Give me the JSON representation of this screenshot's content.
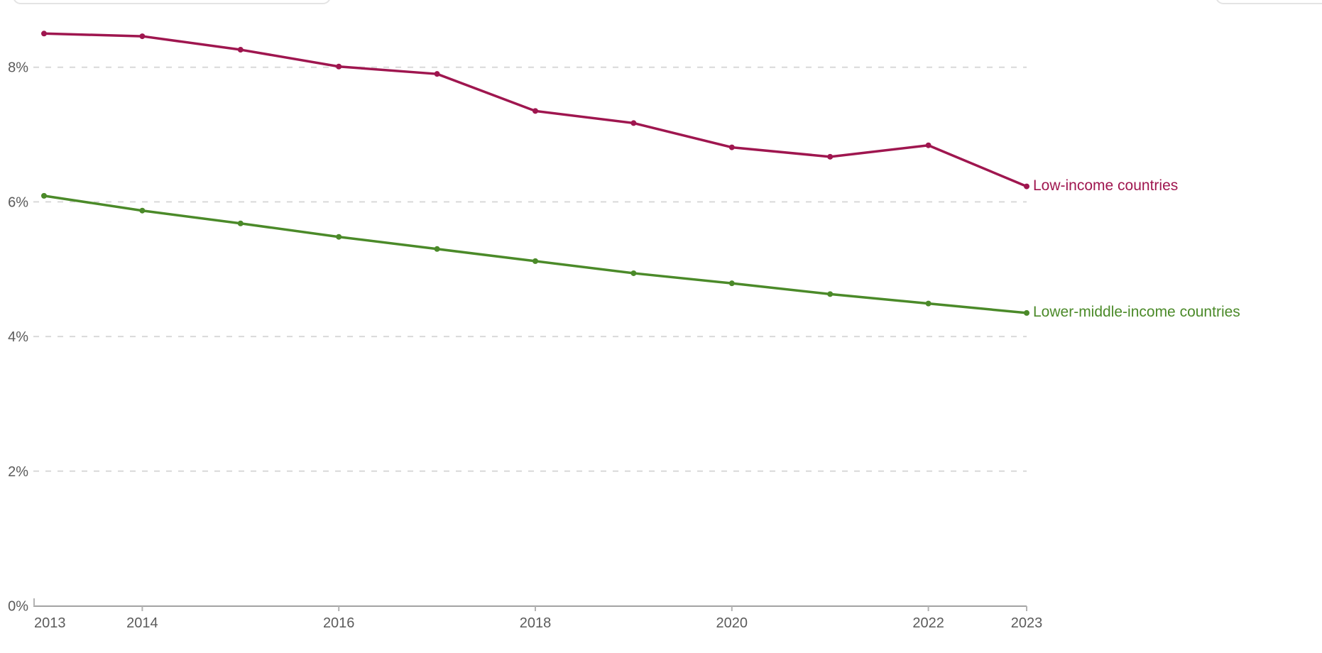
{
  "chart_data": {
    "type": "line",
    "x": [
      2013,
      2014,
      2015,
      2016,
      2017,
      2018,
      2019,
      2020,
      2021,
      2022,
      2023
    ],
    "series": [
      {
        "name": "Low-income countries",
        "color": "#9F164F",
        "values": [
          8.5,
          8.46,
          8.26,
          8.01,
          7.9,
          7.35,
          7.17,
          6.81,
          6.67,
          6.84,
          6.23
        ]
      },
      {
        "name": "Lower-middle-income countries",
        "color": "#4B8A29",
        "values": [
          6.09,
          5.87,
          5.68,
          5.48,
          5.3,
          5.12,
          4.94,
          4.79,
          4.63,
          4.49,
          4.35
        ]
      }
    ],
    "title": "",
    "xlabel": "",
    "ylabel": "",
    "xlim": [
      2013,
      2023
    ],
    "ylim": [
      0,
      9
    ],
    "grid": "horizontal-dashed",
    "legend_position": "right-end-labels",
    "y_ticks": [
      {
        "value": 0,
        "label": "0%"
      },
      {
        "value": 2,
        "label": "2%"
      },
      {
        "value": 4,
        "label": "4%"
      },
      {
        "value": 6,
        "label": "6%"
      },
      {
        "value": 8,
        "label": "8%"
      }
    ],
    "x_ticks": [
      {
        "value": 2013,
        "label": "2013"
      },
      {
        "value": 2014,
        "label": "2014"
      },
      {
        "value": 2016,
        "label": "2016"
      },
      {
        "value": 2018,
        "label": "2018"
      },
      {
        "value": 2020,
        "label": "2020"
      },
      {
        "value": 2022,
        "label": "2022"
      },
      {
        "value": 2023,
        "label": "2023"
      }
    ]
  },
  "colors": {
    "tick_text": "#5b5b5b",
    "gridline": "#d9d9d9",
    "axis_line": "#a3a3a3",
    "axis_tick": "#b3b3b3",
    "background": "#ffffff",
    "partial_control_border": "#e4e4e4"
  }
}
